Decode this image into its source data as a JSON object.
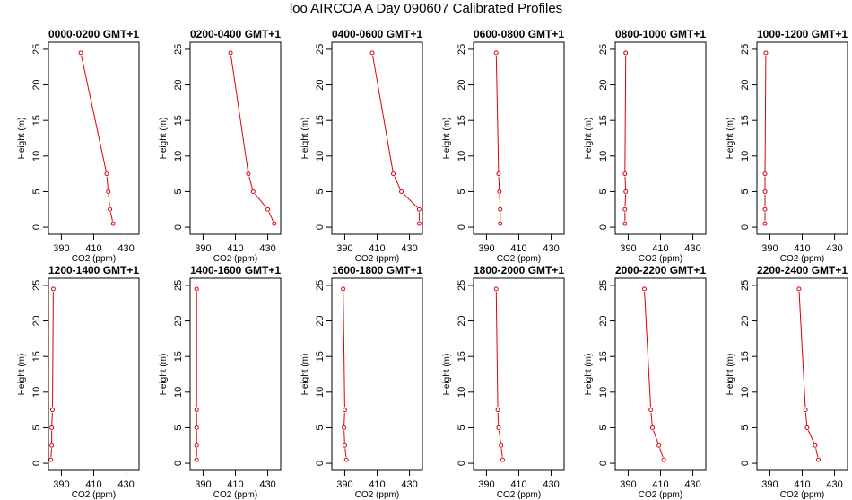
{
  "page_title": "loo AIRCOA A  Day 090607  Calibrated Profiles",
  "colors": {
    "profile": "#dd0000",
    "axis": "#000000"
  },
  "chart_data": [
    {
      "type": "line",
      "title": "0000-0200 GMT+1",
      "xlabel": "CO2 (ppm)",
      "ylabel": "Height (m)",
      "xlim": [
        382,
        438
      ],
      "ylim": [
        -1,
        26
      ],
      "xticks": [
        390,
        410,
        430
      ],
      "yticks": [
        0,
        5,
        10,
        15,
        20,
        25
      ],
      "x": [
        402,
        418,
        419,
        420,
        422
      ],
      "y": [
        24.5,
        7.5,
        5,
        2.5,
        0.5
      ]
    },
    {
      "type": "line",
      "title": "0200-0400 GMT+1",
      "xlabel": "CO2 (ppm)",
      "ylabel": "Height (m)",
      "xlim": [
        382,
        438
      ],
      "ylim": [
        -1,
        26
      ],
      "xticks": [
        390,
        410,
        430
      ],
      "yticks": [
        0,
        5,
        10,
        15,
        20,
        25
      ],
      "x": [
        407,
        418,
        421,
        430,
        434
      ],
      "y": [
        24.5,
        7.5,
        5,
        2.5,
        0.5
      ]
    },
    {
      "type": "line",
      "title": "0400-0600 GMT+1",
      "xlabel": "CO2 (ppm)",
      "ylabel": "Height (m)",
      "xlim": [
        382,
        438
      ],
      "ylim": [
        -1,
        26
      ],
      "xticks": [
        390,
        410,
        430
      ],
      "yticks": [
        0,
        5,
        10,
        15,
        20,
        25
      ],
      "x": [
        407,
        420,
        425,
        436,
        436
      ],
      "y": [
        24.5,
        7.5,
        5,
        2.5,
        0.5
      ]
    },
    {
      "type": "line",
      "title": "0600-0800 GMT+1",
      "xlabel": "CO2 (ppm)",
      "ylabel": "Height (m)",
      "xlim": [
        382,
        438
      ],
      "ylim": [
        -1,
        26
      ],
      "xticks": [
        390,
        410,
        430
      ],
      "yticks": [
        0,
        5,
        10,
        15,
        20,
        25
      ],
      "x": [
        396,
        397.5,
        398,
        398.5,
        398.5
      ],
      "y": [
        24.5,
        7.5,
        5,
        2.5,
        0.5
      ]
    },
    {
      "type": "line",
      "title": "0800-1000 GMT+1",
      "xlabel": "CO2 (ppm)",
      "ylabel": "Height (m)",
      "xlim": [
        382,
        438
      ],
      "ylim": [
        -1,
        26
      ],
      "xticks": [
        390,
        410,
        430
      ],
      "yticks": [
        0,
        5,
        10,
        15,
        20,
        25
      ],
      "x": [
        388.5,
        388,
        388.5,
        388,
        388
      ],
      "y": [
        24.5,
        7.5,
        5,
        2.5,
        0.5
      ]
    },
    {
      "type": "line",
      "title": "1000-1200 GMT+1",
      "xlabel": "CO2 (ppm)",
      "ylabel": "Height (m)",
      "xlim": [
        382,
        438
      ],
      "ylim": [
        -1,
        26
      ],
      "xticks": [
        390,
        410,
        430
      ],
      "yticks": [
        0,
        5,
        10,
        15,
        20,
        25
      ],
      "x": [
        387.5,
        387,
        387,
        387,
        387
      ],
      "y": [
        24.5,
        7.5,
        5,
        2.5,
        0.5
      ]
    },
    {
      "type": "line",
      "title": "1200-1400 GMT+1",
      "xlabel": "CO2 (ppm)",
      "ylabel": "Height (m)",
      "xlim": [
        382,
        438
      ],
      "ylim": [
        -1,
        26
      ],
      "xticks": [
        390,
        410,
        430
      ],
      "yticks": [
        0,
        5,
        10,
        15,
        20,
        25
      ],
      "x": [
        385,
        384.5,
        384,
        384,
        383.5
      ],
      "y": [
        24.5,
        7.5,
        5,
        2.5,
        0.5
      ]
    },
    {
      "type": "line",
      "title": "1400-1600 GMT+1",
      "xlabel": "CO2 (ppm)",
      "ylabel": "Height (m)",
      "xlim": [
        382,
        438
      ],
      "ylim": [
        -1,
        26
      ],
      "xticks": [
        390,
        410,
        430
      ],
      "yticks": [
        0,
        5,
        10,
        15,
        20,
        25
      ],
      "x": [
        386,
        386,
        386,
        386,
        386
      ],
      "y": [
        24.5,
        7.5,
        5,
        2.5,
        0.5
      ]
    },
    {
      "type": "line",
      "title": "1600-1800 GMT+1",
      "xlabel": "CO2 (ppm)",
      "ylabel": "Height (m)",
      "xlim": [
        382,
        438
      ],
      "ylim": [
        -1,
        26
      ],
      "xticks": [
        390,
        410,
        430
      ],
      "yticks": [
        0,
        5,
        10,
        15,
        20,
        25
      ],
      "x": [
        389,
        390,
        389.5,
        390,
        391
      ],
      "y": [
        24.5,
        7.5,
        5,
        2.5,
        0.5
      ]
    },
    {
      "type": "line",
      "title": "1800-2000 GMT+1",
      "xlabel": "CO2 (ppm)",
      "ylabel": "Height (m)",
      "xlim": [
        382,
        438
      ],
      "ylim": [
        -1,
        26
      ],
      "xticks": [
        390,
        410,
        430
      ],
      "yticks": [
        0,
        5,
        10,
        15,
        20,
        25
      ],
      "x": [
        396,
        397,
        397.5,
        399,
        400
      ],
      "y": [
        24.5,
        7.5,
        5,
        2.5,
        0.5
      ]
    },
    {
      "type": "line",
      "title": "2000-2200 GMT+1",
      "xlabel": "CO2 (ppm)",
      "ylabel": "Height (m)",
      "xlim": [
        382,
        438
      ],
      "ylim": [
        -1,
        26
      ],
      "xticks": [
        390,
        410,
        430
      ],
      "yticks": [
        0,
        5,
        10,
        15,
        20,
        25
      ],
      "x": [
        400,
        404,
        405,
        409,
        412
      ],
      "y": [
        24.5,
        7.5,
        5,
        2.5,
        0.5
      ]
    },
    {
      "type": "line",
      "title": "2200-2400 GMT+1",
      "xlabel": "CO2 (ppm)",
      "ylabel": "Height (m)",
      "xlim": [
        382,
        438
      ],
      "ylim": [
        -1,
        26
      ],
      "xticks": [
        390,
        410,
        430
      ],
      "yticks": [
        0,
        5,
        10,
        15,
        20,
        25
      ],
      "x": [
        408,
        412,
        413,
        418,
        420
      ],
      "y": [
        24.5,
        7.5,
        5,
        2.5,
        0.5
      ]
    }
  ]
}
